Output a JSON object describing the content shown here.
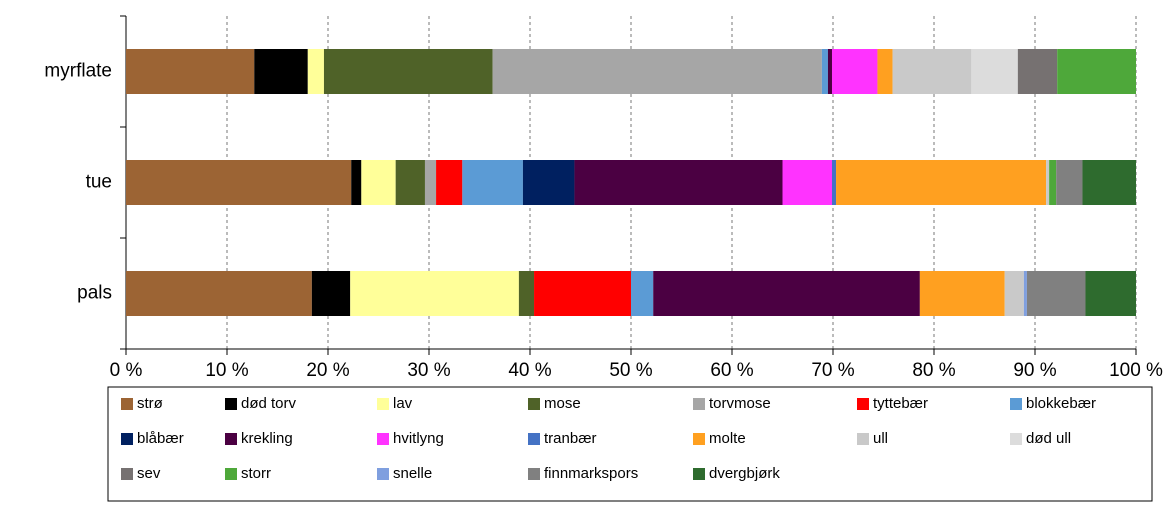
{
  "chart_data": {
    "type": "stacked_bar_horizontal",
    "categories": [
      "myrflate",
      "tue",
      "pals"
    ],
    "xlim": [
      0,
      100
    ],
    "xticks": [
      {
        "value": 0,
        "label": "0 %"
      },
      {
        "value": 10,
        "label": "10 %"
      },
      {
        "value": 20,
        "label": "20 %"
      },
      {
        "value": 30,
        "label": "30 %"
      },
      {
        "value": 40,
        "label": "40 %"
      },
      {
        "value": 50,
        "label": "50 %"
      },
      {
        "value": 60,
        "label": "60 %"
      },
      {
        "value": 70,
        "label": "70 %"
      },
      {
        "value": 80,
        "label": "80 %"
      },
      {
        "value": 90,
        "label": "90 %"
      },
      {
        "value": 100,
        "label": "100 %"
      }
    ],
    "grid": true,
    "legend": "bottom",
    "series": [
      {
        "name": "strø",
        "color": "#9c6434",
        "values": [
          12.7,
          22.3,
          18.4
        ]
      },
      {
        "name": "død torv",
        "color": "#000000",
        "values": [
          5.3,
          1.0,
          3.8
        ]
      },
      {
        "name": "lav",
        "color": "#ffff99",
        "values": [
          1.6,
          3.4,
          16.7
        ]
      },
      {
        "name": "mose",
        "color": "#4f6228",
        "values": [
          16.7,
          2.9,
          1.5
        ]
      },
      {
        "name": "torvmose",
        "color": "#a6a6a6",
        "values": [
          32.6,
          1.1,
          0
        ]
      },
      {
        "name": "tyttebær",
        "color": "#ff0000",
        "values": [
          0,
          2.6,
          9.6
        ]
      },
      {
        "name": "blokkebær",
        "color": "#5b9bd5",
        "values": [
          0.6,
          6.0,
          2.2
        ]
      },
      {
        "name": "blåbær",
        "color": "#002060",
        "values": [
          0,
          5.1,
          0
        ]
      },
      {
        "name": "krekling",
        "color": "#4b0042",
        "values": [
          0.4,
          20.6,
          26.4
        ]
      },
      {
        "name": "hvitlyng",
        "color": "#ff33ff",
        "values": [
          4.5,
          4.9,
          0
        ]
      },
      {
        "name": "tranbær",
        "color": "#4472c4",
        "values": [
          0,
          0.4,
          0
        ]
      },
      {
        "name": "molte",
        "color": "#ffa020",
        "values": [
          1.5,
          20.8,
          8.4
        ]
      },
      {
        "name": "ull",
        "color": "#c9c9c9",
        "values": [
          7.8,
          0.3,
          1.9
        ]
      },
      {
        "name": "død ull",
        "color": "#dcdcdc",
        "values": [
          4.6,
          0,
          0
        ]
      },
      {
        "name": "sev",
        "color": "#767171",
        "values": [
          3.9,
          0,
          0
        ]
      },
      {
        "name": "storr",
        "color": "#4ea83a",
        "values": [
          7.8,
          0.7,
          0
        ]
      },
      {
        "name": "snelle",
        "color": "#7f9fdf",
        "values": [
          0,
          0,
          0.3
        ]
      },
      {
        "name": "finnmarkspors",
        "color": "#808080",
        "values": [
          0,
          2.6,
          5.8
        ]
      },
      {
        "name": "dvergbjørk",
        "color": "#2e6b2e",
        "values": [
          0,
          5.3,
          5.0
        ]
      }
    ]
  }
}
